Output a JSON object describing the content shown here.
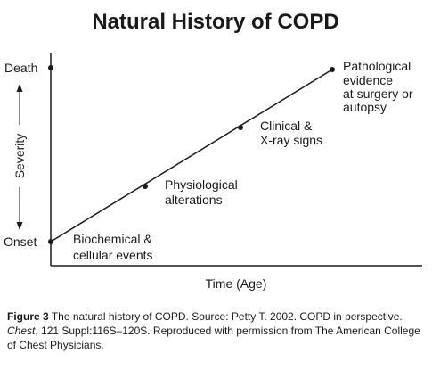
{
  "title": "Natural History of COPD",
  "y_axis": {
    "label": "Severity",
    "top_label": "Death",
    "bottom_label": "Onset"
  },
  "x_axis": {
    "label": "Time (Age)"
  },
  "stages": [
    {
      "order": 1,
      "lines": [
        "Biochemical &",
        "cellular events"
      ]
    },
    {
      "order": 2,
      "lines": [
        "Physiological",
        "alterations"
      ]
    },
    {
      "order": 3,
      "lines": [
        "Clinical &",
        "X-ray signs"
      ]
    },
    {
      "order": 4,
      "lines": [
        "Pathological",
        "evidence",
        "at surgery or",
        "autopsy"
      ]
    }
  ],
  "caption": {
    "figure_number": "Figure 3",
    "text_part1": "The natural history of COPD. Source: Petty T. 2002. COPD in perspective.",
    "journal": "Chest",
    "text_part2": ", 121 Suppl:116S–120S. Reproduced with permission from The American College of Chest Physicians."
  }
}
